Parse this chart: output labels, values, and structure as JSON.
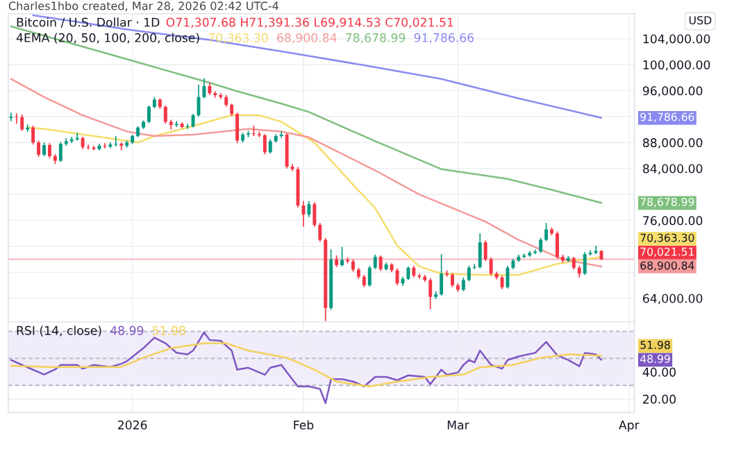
{
  "chart_data": [
    {
      "type": "candlestick",
      "title": "Bitcoin / U.S. Dollar · 1D",
      "annotations": [
        "Charles1hbo created, Mar 28, 2026 02:42 UTC-4",
        "O71,307.68 H71,391.36 L69,914.53 C70,021.51",
        "4EMA (20, 50, 100, 200, close)",
        "USD",
        "70,363.30",
        "68,900.84",
        "78,678.99",
        "91,786.66",
        "70,021.51"
      ],
      "x": [
        "2025-12-10",
        "2025-12-11",
        "2025-12-12",
        "2025-12-13",
        "2025-12-14",
        "2025-12-15",
        "2025-12-16",
        "2025-12-17",
        "2025-12-18",
        "2025-12-19",
        "2025-12-20",
        "2025-12-21",
        "2025-12-22",
        "2025-12-23",
        "2025-12-24",
        "2025-12-25",
        "2025-12-26",
        "2025-12-27",
        "2025-12-28",
        "2025-12-29",
        "2025-12-30",
        "2025-12-31",
        "2026-01-01",
        "2026-01-02",
        "2026-01-03",
        "2026-01-04",
        "2026-01-05",
        "2026-01-06",
        "2026-01-07",
        "2026-01-08",
        "2026-01-09",
        "2026-01-10",
        "2026-01-11",
        "2026-01-12",
        "2026-01-13",
        "2026-01-14",
        "2026-01-15",
        "2026-01-16",
        "2026-01-17",
        "2026-01-18",
        "2026-01-19",
        "2026-01-20",
        "2026-01-21",
        "2026-01-22",
        "2026-01-23",
        "2026-01-24",
        "2026-01-25",
        "2026-01-26",
        "2026-01-27",
        "2026-01-28",
        "2026-01-29",
        "2026-01-30",
        "2026-01-31",
        "2026-02-01",
        "2026-02-02",
        "2026-02-03",
        "2026-02-04",
        "2026-02-05",
        "2026-02-06",
        "2026-02-07",
        "2026-02-08",
        "2026-02-09",
        "2026-02-10",
        "2026-02-11",
        "2026-02-12",
        "2026-02-13",
        "2026-02-14",
        "2026-02-15",
        "2026-02-16",
        "2026-02-17",
        "2026-02-18",
        "2026-02-19",
        "2026-02-20",
        "2026-02-21",
        "2026-02-22",
        "2026-02-23",
        "2026-02-24",
        "2026-02-25",
        "2026-02-26",
        "2026-02-27",
        "2026-02-28",
        "2026-03-01",
        "2026-03-02",
        "2026-03-03",
        "2026-03-04",
        "2026-03-05",
        "2026-03-06",
        "2026-03-07",
        "2026-03-08",
        "2026-03-09",
        "2026-03-10",
        "2026-03-11",
        "2026-03-12",
        "2026-03-13",
        "2026-03-14",
        "2026-03-15",
        "2026-03-16",
        "2026-03-17",
        "2026-03-18",
        "2026-03-19",
        "2026-03-20",
        "2026-03-21",
        "2026-03-22",
        "2026-03-23",
        "2026-03-24",
        "2026-03-25",
        "2026-03-26",
        "2026-03-27"
      ],
      "ohlc": [
        [
          91800,
          92600,
          91300,
          92000
        ],
        [
          92000,
          92500,
          90900,
          91900
        ],
        [
          91900,
          92300,
          89800,
          90000
        ],
        [
          90000,
          90800,
          89600,
          90300
        ],
        [
          90300,
          90600,
          87700,
          88000
        ],
        [
          88000,
          88300,
          85800,
          86100
        ],
        [
          86100,
          88000,
          85900,
          87600
        ],
        [
          87600,
          87900,
          85600,
          85900
        ],
        [
          85900,
          86200,
          84700,
          85200
        ],
        [
          85200,
          88100,
          85000,
          87800
        ],
        [
          87800,
          88700,
          87500,
          88200
        ],
        [
          88200,
          88900,
          87900,
          88500
        ],
        [
          88500,
          89500,
          88300,
          88700
        ],
        [
          88700,
          88900,
          87000,
          87300
        ],
        [
          87300,
          87700,
          86900,
          87200
        ],
        [
          87200,
          87500,
          86800,
          87000
        ],
        [
          87000,
          87800,
          86800,
          87500
        ],
        [
          87500,
          87900,
          87100,
          87400
        ],
        [
          87400,
          88000,
          87100,
          87700
        ],
        [
          87700,
          89000,
          87400,
          87800
        ],
        [
          87800,
          88000,
          86800,
          87500
        ],
        [
          87500,
          88300,
          87200,
          88000
        ],
        [
          88000,
          89200,
          87800,
          89000
        ],
        [
          89000,
          90500,
          88800,
          90300
        ],
        [
          90300,
          91400,
          90100,
          91200
        ],
        [
          91200,
          93700,
          91000,
          93500
        ],
        [
          93500,
          95000,
          93300,
          94600
        ],
        [
          94600,
          94800,
          93200,
          93500
        ],
        [
          93500,
          93700,
          90900,
          91200
        ],
        [
          91200,
          91500,
          90000,
          90700
        ],
        [
          90700,
          91300,
          90400,
          90900
        ],
        [
          90900,
          91100,
          90200,
          90400
        ],
        [
          90400,
          90900,
          90100,
          90500
        ],
        [
          90500,
          92400,
          90300,
          92200
        ],
        [
          92200,
          96900,
          92000,
          95000
        ],
        [
          95000,
          97900,
          94800,
          96700
        ],
        [
          96700,
          97200,
          95300,
          95600
        ],
        [
          95600,
          95900,
          94900,
          95300
        ],
        [
          95300,
          95600,
          94700,
          95000
        ],
        [
          95000,
          95300,
          93500,
          93800
        ],
        [
          93800,
          94000,
          92100,
          92400
        ],
        [
          92400,
          92600,
          87900,
          88300
        ],
        [
          88300,
          89500,
          88000,
          89200
        ],
        [
          89200,
          89800,
          88800,
          89400
        ],
        [
          89400,
          90600,
          89000,
          89300
        ],
        [
          89300,
          89700,
          88800,
          89100
        ],
        [
          89100,
          89300,
          86200,
          86500
        ],
        [
          86500,
          88500,
          86300,
          88200
        ],
        [
          88200,
          89300,
          88000,
          89000
        ],
        [
          89000,
          89700,
          88700,
          89200
        ],
        [
          89200,
          89400,
          84000,
          84300
        ],
        [
          84300,
          84700,
          83600,
          83900
        ],
        [
          83900,
          84200,
          78000,
          78300
        ],
        [
          78300,
          79000,
          75000,
          76900
        ],
        [
          76900,
          79000,
          76500,
          78500
        ],
        [
          78500,
          78800,
          75000,
          75300
        ],
        [
          75300,
          75600,
          72700,
          73000
        ],
        [
          73000,
          73300,
          60500,
          62500
        ],
        [
          62500,
          71500,
          62200,
          70000
        ],
        [
          70000,
          70600,
          68800,
          69100
        ],
        [
          69100,
          71900,
          68900,
          69900
        ],
        [
          69900,
          70300,
          69400,
          69700
        ],
        [
          69700,
          70000,
          68100,
          68400
        ],
        [
          68400,
          68700,
          67000,
          67300
        ],
        [
          67300,
          67600,
          65700,
          66000
        ],
        [
          66000,
          69000,
          65800,
          68700
        ],
        [
          68700,
          70700,
          68500,
          70400
        ],
        [
          70400,
          70600,
          68200,
          68500
        ],
        [
          68500,
          69500,
          68300,
          69200
        ],
        [
          69200,
          69400,
          68000,
          68300
        ],
        [
          68300,
          68600,
          66000,
          66300
        ],
        [
          66300,
          67300,
          65900,
          67000
        ],
        [
          67000,
          68900,
          66800,
          68700
        ],
        [
          68700,
          69000,
          67200,
          67500
        ],
        [
          67500,
          67800,
          67000,
          67300
        ],
        [
          67300,
          67600,
          66500,
          66800
        ],
        [
          66800,
          67100,
          62300,
          64200
        ],
        [
          64200,
          65100,
          63900,
          64600
        ],
        [
          64600,
          70800,
          64400,
          67800
        ],
        [
          67800,
          68300,
          67300,
          67600
        ],
        [
          67600,
          67900,
          65700,
          66000
        ],
        [
          66000,
          66300,
          65000,
          65300
        ],
        [
          65300,
          67200,
          65100,
          66800
        ],
        [
          66800,
          69000,
          66600,
          68700
        ],
        [
          68700,
          69300,
          68500,
          68800
        ],
        [
          68800,
          74000,
          68600,
          72600
        ],
        [
          72600,
          72900,
          69700,
          70000
        ],
        [
          70000,
          70300,
          67500,
          67800
        ],
        [
          67800,
          68100,
          66900,
          67200
        ],
        [
          67200,
          67500,
          65400,
          65700
        ],
        [
          65700,
          69000,
          65500,
          68700
        ],
        [
          68700,
          70100,
          68500,
          69800
        ],
        [
          69800,
          70700,
          69600,
          70400
        ],
        [
          70400,
          70900,
          70200,
          70600
        ],
        [
          70600,
          71300,
          70400,
          71000
        ],
        [
          71000,
          71500,
          70800,
          71200
        ],
        [
          71200,
          73300,
          71000,
          73000
        ],
        [
          73000,
          75600,
          72800,
          74600
        ],
        [
          74600,
          74900,
          73700,
          74000
        ],
        [
          74000,
          74300,
          70100,
          70400
        ],
        [
          70400,
          70700,
          69500,
          69800
        ],
        [
          69800,
          70500,
          69600,
          70200
        ],
        [
          70200,
          70400,
          68400,
          68700
        ],
        [
          68700,
          69000,
          67200,
          67800
        ],
        [
          67800,
          71100,
          67600,
          70800
        ],
        [
          70800,
          71400,
          70600,
          71000
        ],
        [
          71000,
          72100,
          70800,
          71307.68
        ],
        [
          71307.68,
          71391.36,
          69914.53,
          70021.51
        ]
      ],
      "colors": [
        "#089981",
        "#f23645",
        "#f23645",
        "#089981",
        "#f23645",
        "#f23645",
        "#089981",
        "#f23645",
        "#f23645",
        "#089981",
        "#089981",
        "#089981",
        "#089981",
        "#f23645",
        "#f23645",
        "#f23645",
        "#089981",
        "#f23645",
        "#089981",
        "#089981",
        "#f23645",
        "#089981",
        "#089981",
        "#089981",
        "#089981",
        "#089981",
        "#089981",
        "#f23645",
        "#f23645",
        "#f23645",
        "#089981",
        "#f23645",
        "#089981",
        "#089981",
        "#089981",
        "#089981",
        "#f23645",
        "#f23645",
        "#f23645",
        "#f23645",
        "#f23645",
        "#f23645",
        "#089981",
        "#089981",
        "#f23645",
        "#f23645",
        "#f23645",
        "#089981",
        "#089981",
        "#089981",
        "#f23645",
        "#f23645",
        "#f23645",
        "#f23645",
        "#089981",
        "#f23645",
        "#f23645",
        "#f23645",
        "#089981",
        "#f23645",
        "#089981",
        "#f23645",
        "#f23645",
        "#f23645",
        "#f23645",
        "#089981",
        "#089981",
        "#f23645",
        "#089981",
        "#f23645",
        "#f23645",
        "#089981",
        "#089981",
        "#f23645",
        "#f23645",
        "#f23645",
        "#f23645",
        "#089981",
        "#089981",
        "#f23645",
        "#f23645",
        "#f23645",
        "#089981",
        "#089981",
        "#089981",
        "#089981",
        "#f23645",
        "#f23645",
        "#f23645",
        "#f23645",
        "#089981",
        "#089981",
        "#089981",
        "#089981",
        "#089981",
        "#089981",
        "#089981",
        "#089981",
        "#f23645",
        "#f23645",
        "#f23645",
        "#089981",
        "#f23645",
        "#f23645",
        "#089981",
        "#089981",
        "#089981",
        "#f23645"
      ],
      "series": [
        {
          "type": "line",
          "color": "#f5dd6b",
          "x": [
            "2025-12-13",
            "2025-12-16",
            "2025-12-25",
            "2026-01-02",
            "2026-01-05",
            "2026-01-11",
            "2026-01-19",
            "2026-01-24",
            "2026-01-28",
            "2026-02-03",
            "2026-02-10",
            "2026-02-14",
            "2026-02-18",
            "2026-02-22",
            "2026-02-26",
            "2026-03-05",
            "2026-03-12",
            "2026-03-19",
            "2026-03-27"
          ],
          "values": [
            90300,
            90100,
            89000,
            88000,
            89000,
            90300,
            92200,
            92200,
            91200,
            88000,
            81500,
            77900,
            72100,
            68900,
            67800,
            67600,
            67600,
            69300,
            70400
          ]
        },
        {
          "type": "line",
          "color": "#f49a9a",
          "x": [
            "2025-12-10",
            "2025-12-16",
            "2025-12-23",
            "2025-12-31",
            "2026-01-05",
            "2026-01-12",
            "2026-01-22",
            "2026-01-28",
            "2026-02-02",
            "2026-02-14",
            "2026-02-22",
            "2026-03-06",
            "2026-03-12",
            "2026-03-20",
            "2026-03-27"
          ],
          "values": [
            97800,
            95000,
            92200,
            89700,
            89000,
            89200,
            90100,
            89700,
            88800,
            83700,
            80000,
            75800,
            73000,
            70000,
            68900
          ]
        },
        {
          "type": "line",
          "color": "#7fbf7f",
          "x": [
            "2025-12-10",
            "2026-01-01",
            "2026-01-15",
            "2026-01-20",
            "2026-01-28",
            "2026-02-02",
            "2026-02-14",
            "2026-02-26",
            "2026-03-10",
            "2026-03-18",
            "2026-03-27"
          ],
          "values": [
            105900,
            100600,
            97200,
            95900,
            94000,
            92700,
            88200,
            83900,
            82400,
            80700,
            78700
          ]
        },
        {
          "type": "line",
          "color": "#8a8af0",
          "x": [
            "2025-12-14",
            "2026-01-01",
            "2026-01-15",
            "2026-01-29",
            "2026-02-12",
            "2026-02-26",
            "2026-03-12",
            "2026-03-27"
          ],
          "values": [
            107600,
            105300,
            103800,
            101900,
            99900,
            97800,
            94800,
            91800
          ]
        }
      ],
      "ref_lines": [
        {
          "axis": "y",
          "value": 70021.51,
          "color": "#f7b5bb"
        }
      ],
      "xlim": [
        "2025-12-09T12:00",
        "2026-04-02"
      ],
      "xticks": [
        {
          "value": "2026-01-01",
          "label": null
        },
        {
          "value": "2026-02-01",
          "label": null
        },
        {
          "value": "2026-03-01",
          "label": null
        },
        {
          "value": "2026-04-01",
          "label": null
        }
      ],
      "ylim": [
        60360,
        107850
      ],
      "yticks": [
        {
          "value": 64000,
          "label": "64,000.00"
        },
        {
          "value": 68000,
          "label": null
        },
        {
          "value": 72000,
          "label": null
        },
        {
          "value": 76000,
          "label": "76,000.00"
        },
        {
          "value": 80000,
          "label": null
        },
        {
          "value": 84000,
          "label": "84,000.00"
        },
        {
          "value": 88000,
          "label": "88,000.00"
        },
        {
          "value": 92000,
          "label": null
        },
        {
          "value": 96000,
          "label": "96,000.00"
        },
        {
          "value": 100000,
          "label": "100,000.00"
        },
        {
          "value": 104000,
          "label": "104,000.00"
        }
      ],
      "grid": true,
      "tick_labels": "y"
    },
    {
      "type": "line",
      "annotations": [
        "RSI (14, close)",
        "48.99",
        "51.98"
      ],
      "series": [
        {
          "type": "line",
          "color": "#7e57c2",
          "x": [
            "2025-12-10",
            "2025-12-13",
            "2025-12-16",
            "2025-12-18",
            "2025-12-19",
            "2025-12-22",
            "2025-12-23",
            "2025-12-25",
            "2025-12-28",
            "2025-12-30",
            "2025-12-31",
            "2026-01-03",
            "2026-01-05",
            "2026-01-07",
            "2026-01-09",
            "2026-01-11",
            "2026-01-12",
            "2026-01-14",
            "2026-01-15",
            "2026-01-17",
            "2026-01-19",
            "2026-01-20",
            "2026-01-22",
            "2026-01-25",
            "2026-01-26",
            "2026-01-28",
            "2026-01-29",
            "2026-01-31",
            "2026-02-02",
            "2026-02-04",
            "2026-02-05",
            "2026-02-06",
            "2026-02-08",
            "2026-02-10",
            "2026-02-12",
            "2026-02-14",
            "2026-02-16",
            "2026-02-18",
            "2026-02-20",
            "2026-02-23",
            "2026-02-24",
            "2026-02-26",
            "2026-02-27",
            "2026-03-01",
            "2026-03-02",
            "2026-03-03",
            "2026-03-04",
            "2026-03-05",
            "2026-03-07",
            "2026-03-09",
            "2026-03-10",
            "2026-03-12",
            "2026-03-15",
            "2026-03-17",
            "2026-03-19",
            "2026-03-21",
            "2026-03-23",
            "2026-03-24",
            "2026-03-26",
            "2026-03-27"
          ],
          "values": [
            48.8,
            43.4,
            38.1,
            41.9,
            45.2,
            45.2,
            42.4,
            45.2,
            43.7,
            46,
            48,
            57.6,
            65.4,
            61.2,
            54.2,
            53,
            55.8,
            69.3,
            63.6,
            63,
            55.8,
            41.7,
            43.1,
            37.9,
            43.1,
            45.2,
            39.8,
            29.3,
            29.3,
            27.5,
            17,
            34.7,
            34.7,
            32.9,
            29.3,
            36.3,
            36.3,
            33.9,
            37.5,
            36.3,
            31,
            41.7,
            37.9,
            39.6,
            45.2,
            48.8,
            47,
            55.8,
            45.2,
            42.4,
            48.8,
            51.5,
            54.1,
            62.2,
            52.3,
            48.8,
            44.2,
            54.1,
            53,
            49
          ]
        },
        {
          "type": "line",
          "color": "#f2d15c",
          "x": [
            "2025-12-10",
            "2025-12-17",
            "2025-12-30",
            "2026-01-03",
            "2026-01-08",
            "2026-01-14",
            "2026-01-18",
            "2026-01-22",
            "2026-01-29",
            "2026-02-03",
            "2026-02-07",
            "2026-02-13",
            "2026-02-18",
            "2026-02-24",
            "2026-03-02",
            "2026-03-05",
            "2026-03-11",
            "2026-03-16",
            "2026-03-21",
            "2026-03-27"
          ],
          "values": [
            44.6,
            43.7,
            43.7,
            50.5,
            57.6,
            61.2,
            61.2,
            55.8,
            50.5,
            41.7,
            32.9,
            29.3,
            32.9,
            36.3,
            38.1,
            43.4,
            45.2,
            50.5,
            53,
            52
          ]
        }
      ],
      "ref_lines": [
        {
          "axis": "y",
          "value": 70,
          "color": "#b2b5be",
          "line_style": "dashed"
        },
        {
          "axis": "y",
          "value": 50,
          "color": "#b2b5be",
          "line_style": "dashed"
        },
        {
          "axis": "y",
          "value": 30,
          "color": "#b2b5be",
          "line_style": "dashed"
        }
      ],
      "bands": [
        {
          "axis": "y",
          "from": 30,
          "to": 70,
          "color": "#f1ecfa"
        }
      ],
      "xlim": [
        "2025-12-09T12:00",
        "2026-04-02"
      ],
      "xticks": [
        {
          "value": "2026-01-01",
          "label": "2026"
        },
        {
          "value": "2026-02-01",
          "label": "Feb"
        },
        {
          "value": "2026-03-01",
          "label": "Mar"
        },
        {
          "value": "2026-04-01",
          "label": "Apr"
        }
      ],
      "ylim": [
        10,
        77
      ],
      "yticks": [
        {
          "value": 20,
          "label": "20.00"
        },
        {
          "value": 40,
          "label": "40.00"
        }
      ],
      "grid": true
    }
  ]
}
